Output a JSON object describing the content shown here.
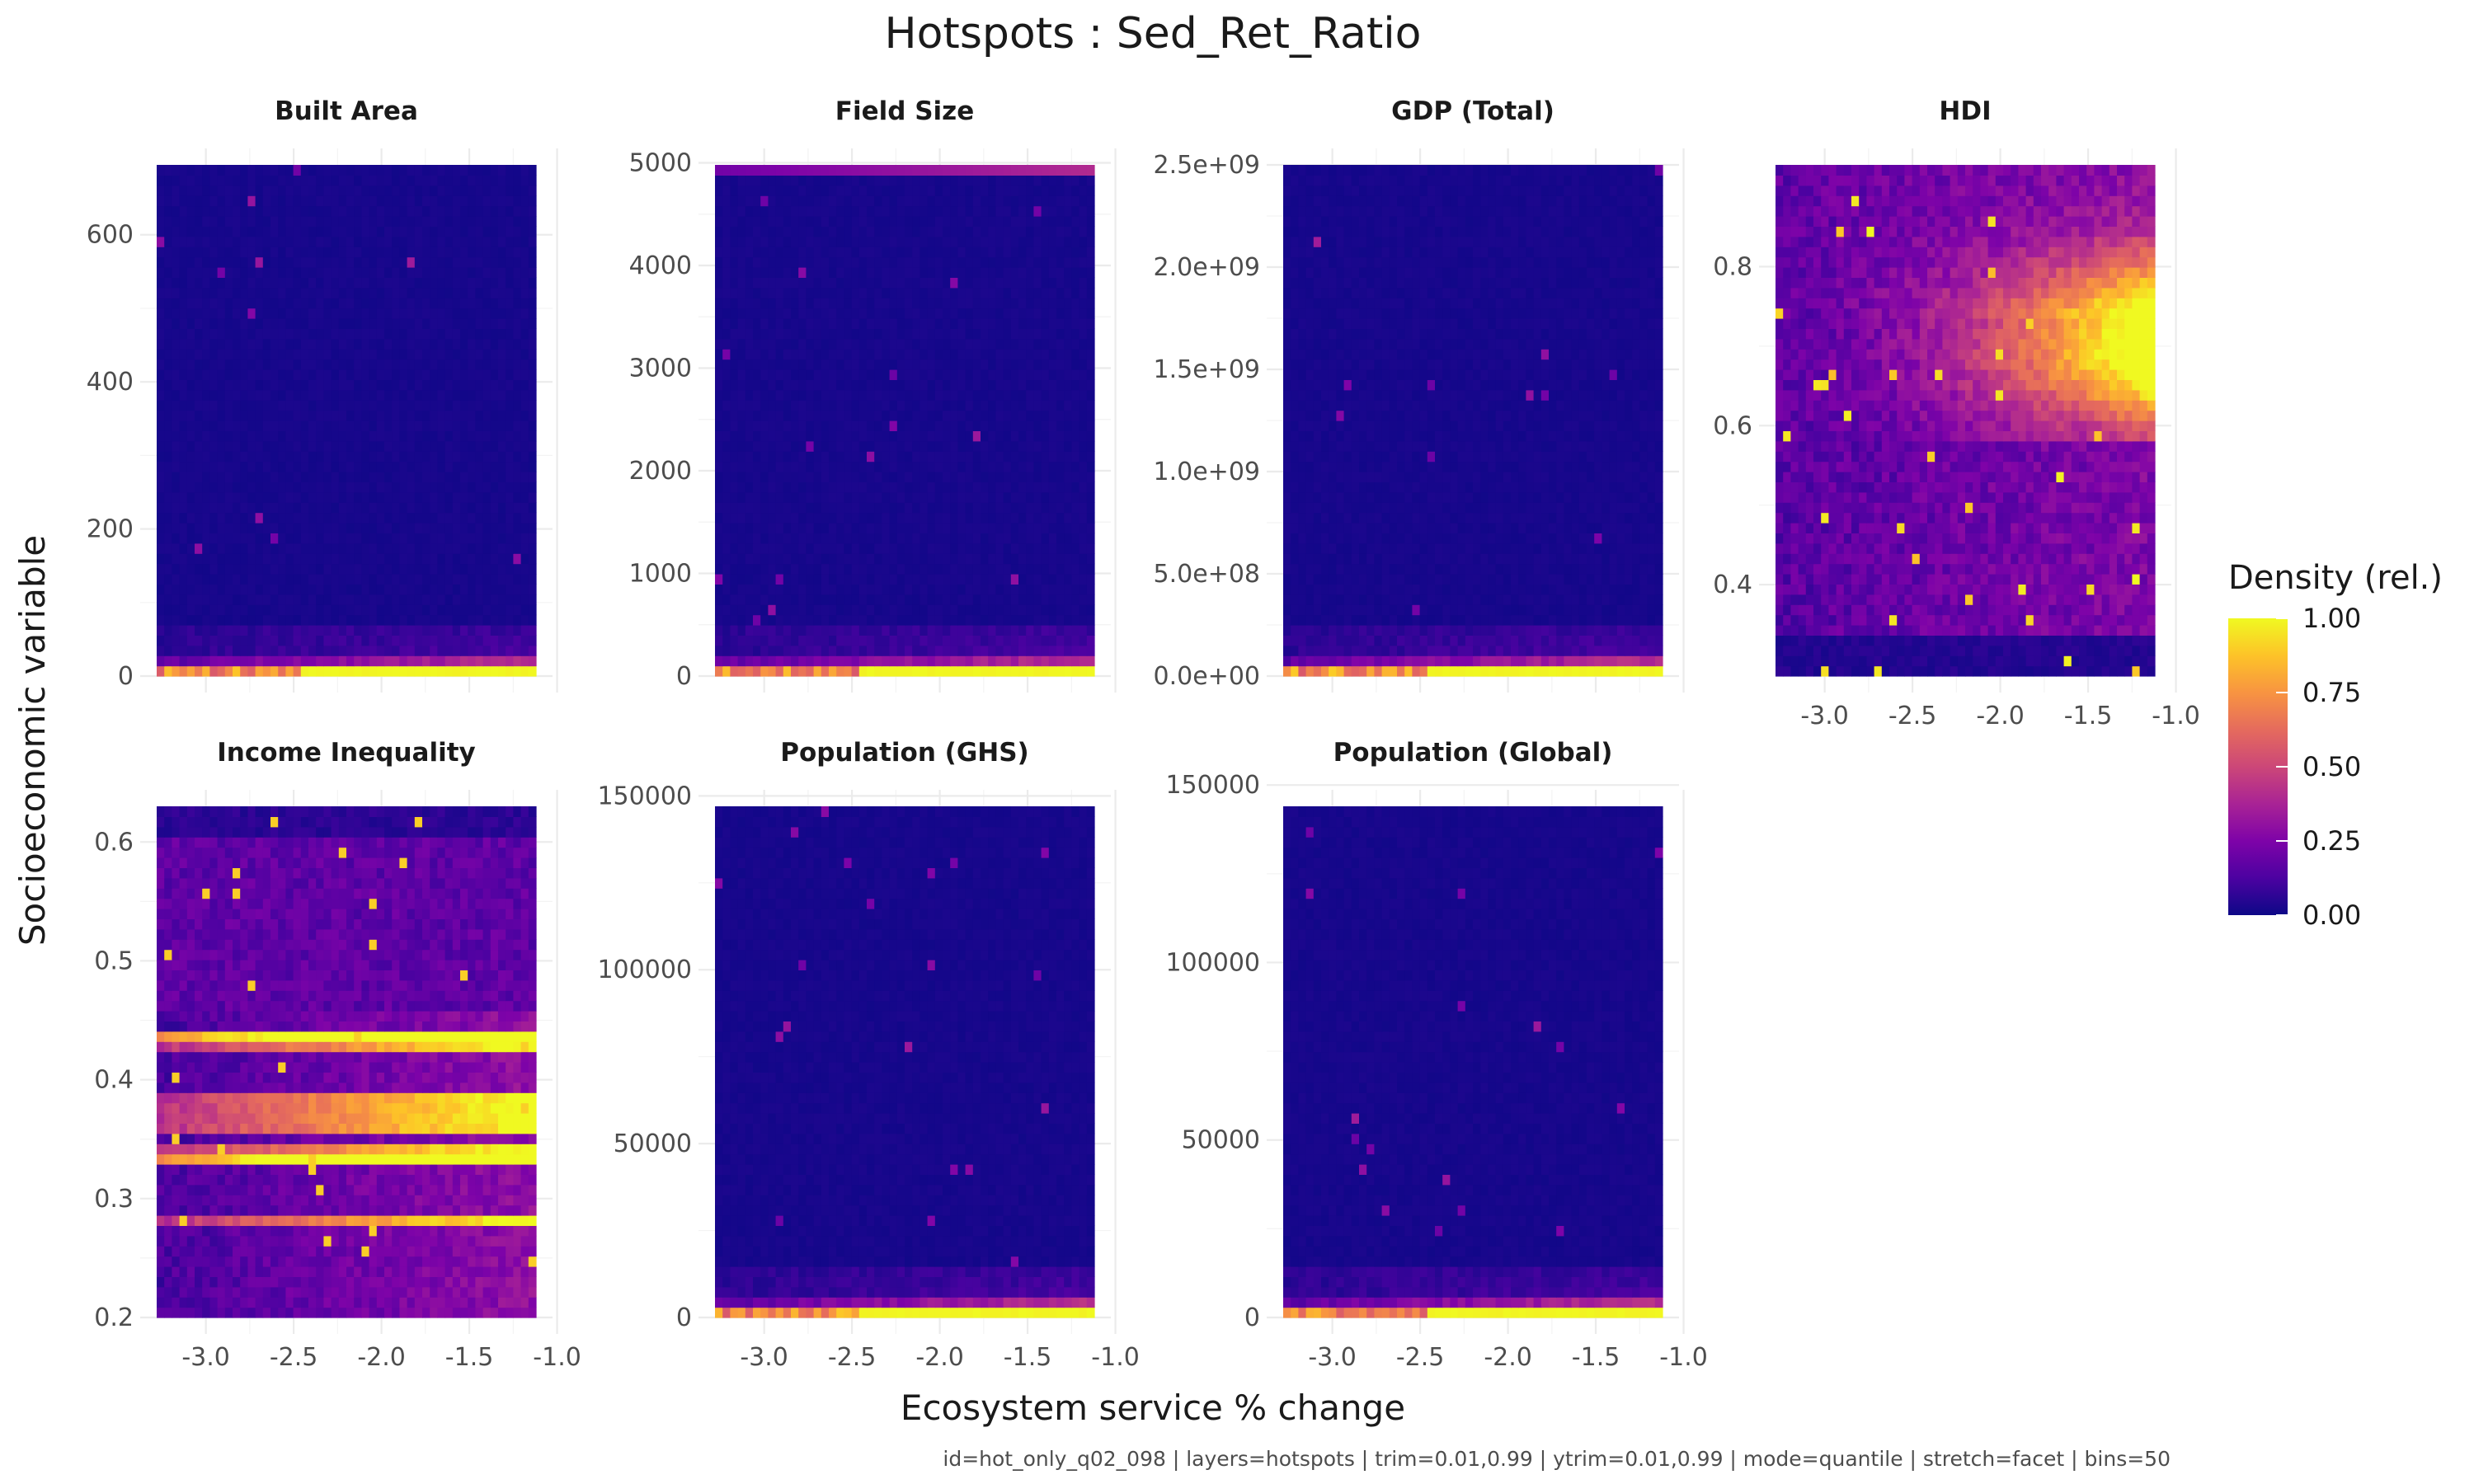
{
  "chart_data": {
    "type": "heatmap",
    "title": "Hotspots : Sed_Ret_Ratio",
    "xlabel": "Ecosystem service % change",
    "ylabel": "Socioeconomic variable",
    "caption": "id=hot_only_q02_098 | layers=hotspots | trim=0.01,0.99 | ytrim=0.01,0.99 | mode=quantile | stretch=facet | bins=50",
    "bins": 50,
    "colorscale": "plasma",
    "x_range": [
      -3.28,
      -1.12
    ],
    "x_ticks": [
      "-3.0",
      "-2.5",
      "-2.0",
      "-1.5",
      "-1.0"
    ],
    "x_tick_values": [
      -3.0,
      -2.5,
      -2.0,
      -1.5,
      -1.0
    ],
    "legend": {
      "title": "Density (rel.)",
      "position": "right",
      "range": [
        0,
        1
      ],
      "ticks": [
        "1.00",
        "0.75",
        "0.50",
        "0.25",
        "0.00"
      ],
      "tick_values": [
        1.0,
        0.75,
        0.5,
        0.25,
        0.0
      ]
    },
    "grid": true,
    "facets": [
      {
        "name": "Built Area",
        "y_range": [
          0,
          695
        ],
        "y_ticks": [
          "0",
          "200",
          "400",
          "600"
        ],
        "y_tick_values": [
          0,
          200,
          400,
          600
        ],
        "pattern": "bottom-band"
      },
      {
        "name": "Field Size",
        "y_range": [
          0,
          4980
        ],
        "y_ticks": [
          "0",
          "1000",
          "2000",
          "3000",
          "4000",
          "5000"
        ],
        "y_tick_values": [
          0,
          1000,
          2000,
          3000,
          4000,
          5000
        ],
        "pattern": "bottom-band-top-strip"
      },
      {
        "name": "GDP (Total)",
        "y_range": [
          0,
          2500000000
        ],
        "y_ticks": [
          "0.0e+00",
          "5.0e+08",
          "1.0e+09",
          "1.5e+09",
          "2.0e+09",
          "2.5e+09"
        ],
        "y_tick_values": [
          0,
          500000000,
          1000000000,
          1500000000,
          2000000000,
          2500000000
        ],
        "pattern": "bottom-band"
      },
      {
        "name": "HDI",
        "y_range": [
          0.285,
          0.928
        ],
        "y_ticks": [
          "0.4",
          "0.6",
          "0.8"
        ],
        "y_tick_values": [
          0.4,
          0.6,
          0.8
        ],
        "pattern": "hdi"
      },
      {
        "name": "Income Inequality",
        "y_range": [
          0.2,
          0.63
        ],
        "y_ticks": [
          "0.2",
          "0.3",
          "0.4",
          "0.5",
          "0.6"
        ],
        "y_tick_values": [
          0.2,
          0.3,
          0.4,
          0.5,
          0.6
        ],
        "pattern": "income"
      },
      {
        "name": "Population (GHS)",
        "y_range": [
          0,
          147000
        ],
        "y_ticks": [
          "0",
          "50000",
          "100000",
          "150000"
        ],
        "y_tick_values": [
          0,
          50000,
          100000,
          150000
        ],
        "pattern": "bottom-band"
      },
      {
        "name": "Population (Global)",
        "y_range": [
          0,
          144000
        ],
        "y_ticks": [
          "0",
          "50000",
          "100000",
          "150000"
        ],
        "y_tick_values": [
          0,
          50000,
          100000,
          150000
        ],
        "pattern": "bottom-band"
      }
    ]
  }
}
